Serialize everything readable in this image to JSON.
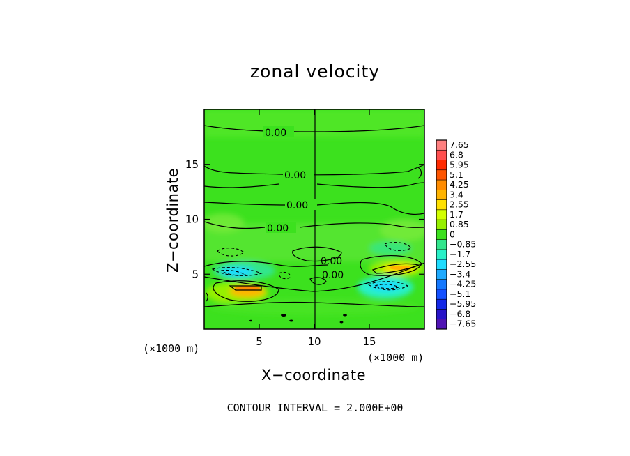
{
  "chart_data": {
    "type": "heatmap",
    "title": "zonal velocity",
    "xlabel": "X−coordinate",
    "ylabel": "Z−coordinate",
    "x_unit_label": "(×1000 m)",
    "xlim": [
      0,
      20
    ],
    "ylim": [
      0,
      20
    ],
    "x_ticks": [
      5,
      10,
      15
    ],
    "y_ticks": [
      5,
      10,
      15
    ],
    "colorbar": {
      "levels": [
        "7.65",
        "6.8",
        "5.95",
        "5.1",
        "4.25",
        "3.4",
        "2.55",
        "1.7",
        "0.85",
        "0",
        "−0.85",
        "−1.7",
        "−2.55",
        "−3.4",
        "−4.25",
        "−5.1",
        "−5.95",
        "−6.8",
        "−7.65"
      ],
      "colors": [
        "#ff8080",
        "#ff5050",
        "#ff2a00",
        "#ff5500",
        "#ff8c00",
        "#ffb400",
        "#ffe000",
        "#d2ff00",
        "#96f000",
        "#3ce11e",
        "#32e68c",
        "#28f0c8",
        "#1edcff",
        "#1eaaff",
        "#1478ff",
        "#1450ff",
        "#1428e6",
        "#2814c8",
        "#5014b4"
      ]
    },
    "contour_labels": [
      "0.00",
      "0.00",
      "0.00",
      "0.00",
      "0.00",
      "0.00"
    ],
    "note": "CONTOUR INTERVAL = 2.000E+00"
  }
}
